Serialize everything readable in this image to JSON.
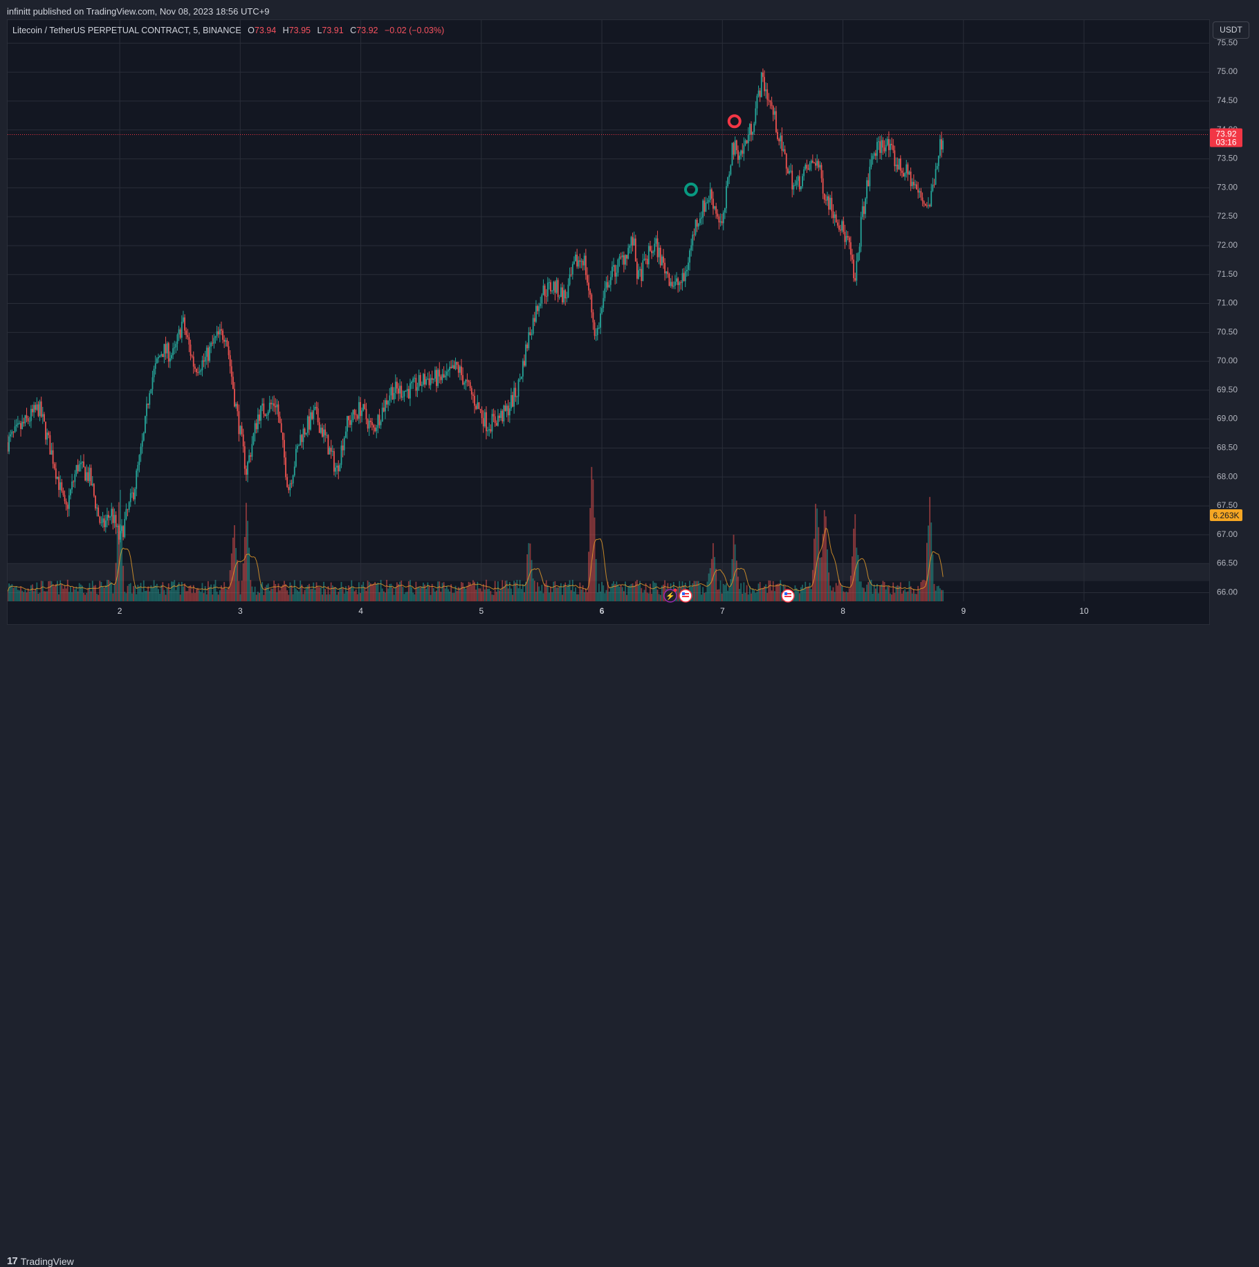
{
  "header": {
    "published_by": "infinitt published on TradingView.com, Nov 08, 2023 18:56 UTC+9"
  },
  "legend": {
    "symbol": "Litecoin / TetherUS PERPETUAL CONTRACT, 5, BINANCE",
    "o_label": "O",
    "o_value": "73.94",
    "h_label": "H",
    "h_value": "73.95",
    "l_label": "L",
    "l_value": "73.91",
    "c_label": "C",
    "c_value": "73.92",
    "change": "−0.02 (−0.03%)"
  },
  "price_axis": {
    "unit_button": "USDT",
    "last_price": "73.92",
    "countdown": "03:16",
    "volume_label": "6.263K"
  },
  "footer": {
    "brand": "TradingView"
  },
  "colors": {
    "up": "#26a69a",
    "down": "#ef5350",
    "background": "#131722",
    "grid": "#2a2e39",
    "last_price": "#f23645",
    "volume_badge": "#f5a623"
  },
  "chart_data": {
    "type": "candlestick",
    "interval": "5",
    "y_axis": {
      "ticks": [
        66.0,
        66.5,
        67.0,
        67.5,
        68.0,
        68.5,
        69.0,
        69.5,
        70.0,
        70.5,
        71.0,
        71.5,
        72.0,
        72.5,
        73.0,
        73.5,
        74.0,
        74.5,
        75.0,
        75.5
      ],
      "tick_labels": [
        "66.00",
        "66.50",
        "67.00",
        "67.50",
        "68.00",
        "68.50",
        "69.00",
        "69.50",
        "70.00",
        "70.50",
        "71.00",
        "71.50",
        "72.00",
        "72.50",
        "73.00",
        "73.50",
        "74.00",
        "74.50",
        "75.00",
        "75.50"
      ],
      "ylim": [
        65.85,
        75.9
      ]
    },
    "x_axis": {
      "tick_labels": [
        "2",
        "3",
        "4",
        "5",
        "6",
        "7",
        "8",
        "9",
        "10"
      ],
      "bold_ticks": [
        "6"
      ],
      "xlim": [
        1.07,
        11.05
      ]
    },
    "price_path": [
      [
        1.07,
        68.6
      ],
      [
        1.2,
        68.9
      ],
      [
        1.33,
        69.2
      ],
      [
        1.45,
        68.3
      ],
      [
        1.55,
        67.4
      ],
      [
        1.65,
        68.2
      ],
      [
        1.75,
        68.0
      ],
      [
        1.85,
        67.1
      ],
      [
        1.93,
        67.4
      ],
      [
        2.0,
        66.9
      ],
      [
        2.12,
        67.8
      ],
      [
        2.2,
        68.7
      ],
      [
        2.25,
        69.6
      ],
      [
        2.35,
        70.2
      ],
      [
        2.45,
        70.1
      ],
      [
        2.52,
        70.7
      ],
      [
        2.62,
        69.9
      ],
      [
        2.7,
        70.0
      ],
      [
        2.8,
        70.4
      ],
      [
        2.88,
        70.5
      ],
      [
        2.95,
        69.4
      ],
      [
        3.05,
        68.1
      ],
      [
        3.15,
        69.1
      ],
      [
        3.3,
        69.3
      ],
      [
        3.4,
        67.8
      ],
      [
        3.5,
        68.7
      ],
      [
        3.62,
        69.1
      ],
      [
        3.7,
        68.7
      ],
      [
        3.8,
        68.1
      ],
      [
        3.88,
        68.9
      ],
      [
        4.0,
        69.2
      ],
      [
        4.1,
        68.8
      ],
      [
        4.25,
        69.5
      ],
      [
        4.4,
        69.5
      ],
      [
        4.55,
        69.7
      ],
      [
        4.7,
        69.7
      ],
      [
        4.8,
        69.9
      ],
      [
        4.9,
        69.5
      ],
      [
        5.05,
        68.9
      ],
      [
        5.2,
        69.1
      ],
      [
        5.3,
        69.5
      ],
      [
        5.4,
        70.5
      ],
      [
        5.5,
        71.2
      ],
      [
        5.6,
        71.3
      ],
      [
        5.7,
        71.1
      ],
      [
        5.78,
        71.7
      ],
      [
        5.85,
        71.8
      ],
      [
        5.95,
        70.4
      ],
      [
        6.05,
        71.4
      ],
      [
        6.18,
        71.8
      ],
      [
        6.26,
        72.1
      ],
      [
        6.3,
        71.4
      ],
      [
        6.4,
        71.9
      ],
      [
        6.45,
        72.0
      ],
      [
        6.5,
        71.7
      ],
      [
        6.6,
        71.3
      ],
      [
        6.68,
        71.4
      ],
      [
        6.78,
        72.4
      ],
      [
        6.9,
        72.9
      ],
      [
        7.0,
        72.3
      ],
      [
        7.08,
        73.7
      ],
      [
        7.16,
        73.6
      ],
      [
        7.25,
        74.1
      ],
      [
        7.33,
        74.9
      ],
      [
        7.42,
        74.3
      ],
      [
        7.5,
        73.6
      ],
      [
        7.6,
        73.0
      ],
      [
        7.7,
        73.3
      ],
      [
        7.78,
        73.5
      ],
      [
        7.85,
        72.9
      ],
      [
        7.95,
        72.5
      ],
      [
        8.05,
        72.0
      ],
      [
        8.1,
        71.3
      ],
      [
        8.15,
        72.4
      ],
      [
        8.25,
        73.6
      ],
      [
        8.35,
        73.8
      ],
      [
        8.45,
        73.4
      ],
      [
        8.55,
        73.2
      ],
      [
        8.65,
        72.8
      ],
      [
        8.72,
        72.7
      ],
      [
        8.78,
        73.5
      ],
      [
        8.83,
        73.92
      ]
    ],
    "volume_spikes": [
      [
        2.0,
        0.85
      ],
      [
        2.95,
        0.55
      ],
      [
        3.05,
        0.65
      ],
      [
        5.4,
        0.45
      ],
      [
        5.92,
        1.0
      ],
      [
        6.92,
        0.35
      ],
      [
        7.1,
        0.45
      ],
      [
        7.78,
        0.75
      ],
      [
        7.85,
        0.7
      ],
      [
        8.1,
        0.55
      ],
      [
        8.72,
        0.75
      ]
    ],
    "markers": [
      {
        "type": "circle",
        "color": "#089981",
        "x": 6.74,
        "y": 72.97
      },
      {
        "type": "circle",
        "color": "#f23645",
        "x": 7.1,
        "y": 74.15
      }
    ],
    "last_price": 73.92,
    "current_volume": "6.263K"
  }
}
